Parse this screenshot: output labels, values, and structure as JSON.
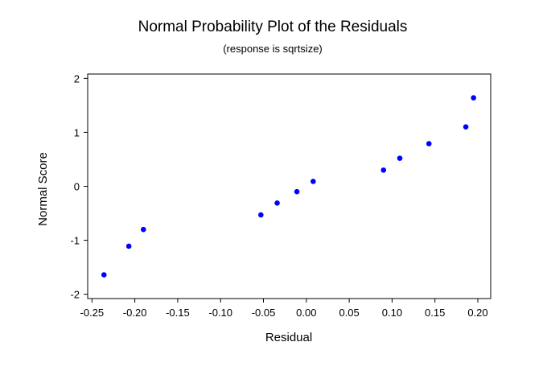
{
  "chart_data": {
    "type": "scatter",
    "title": "Normal Probability Plot of the Residuals",
    "subtitle": "(response is sqrtsize)",
    "xlabel": "Residual",
    "ylabel": "Normal Score",
    "xlim": [
      -0.255,
      0.215
    ],
    "ylim": [
      -2.08,
      2.08
    ],
    "xticks": [
      -0.25,
      -0.2,
      -0.15,
      -0.1,
      -0.05,
      0.0,
      0.05,
      0.1,
      0.15,
      0.2
    ],
    "xtick_labels": [
      "-0.25",
      "-0.20",
      "-0.15",
      "-0.10",
      "-0.05",
      "0.00",
      "0.05",
      "0.10",
      "0.15",
      "0.20"
    ],
    "yticks": [
      -2,
      -1,
      0,
      1,
      2
    ],
    "ytick_labels": [
      "-2",
      "-1",
      "0",
      "1",
      "2"
    ],
    "grid": false,
    "marker_color": "#0000ff",
    "points": [
      {
        "x": -0.236,
        "y": -1.64
      },
      {
        "x": -0.207,
        "y": -1.11
      },
      {
        "x": -0.19,
        "y": -0.8
      },
      {
        "x": -0.053,
        "y": -0.53
      },
      {
        "x": -0.034,
        "y": -0.31
      },
      {
        "x": -0.011,
        "y": -0.1
      },
      {
        "x": 0.008,
        "y": 0.09
      },
      {
        "x": 0.09,
        "y": 0.3
      },
      {
        "x": 0.109,
        "y": 0.52
      },
      {
        "x": 0.143,
        "y": 0.79
      },
      {
        "x": 0.186,
        "y": 1.1
      },
      {
        "x": 0.195,
        "y": 1.64
      }
    ]
  }
}
